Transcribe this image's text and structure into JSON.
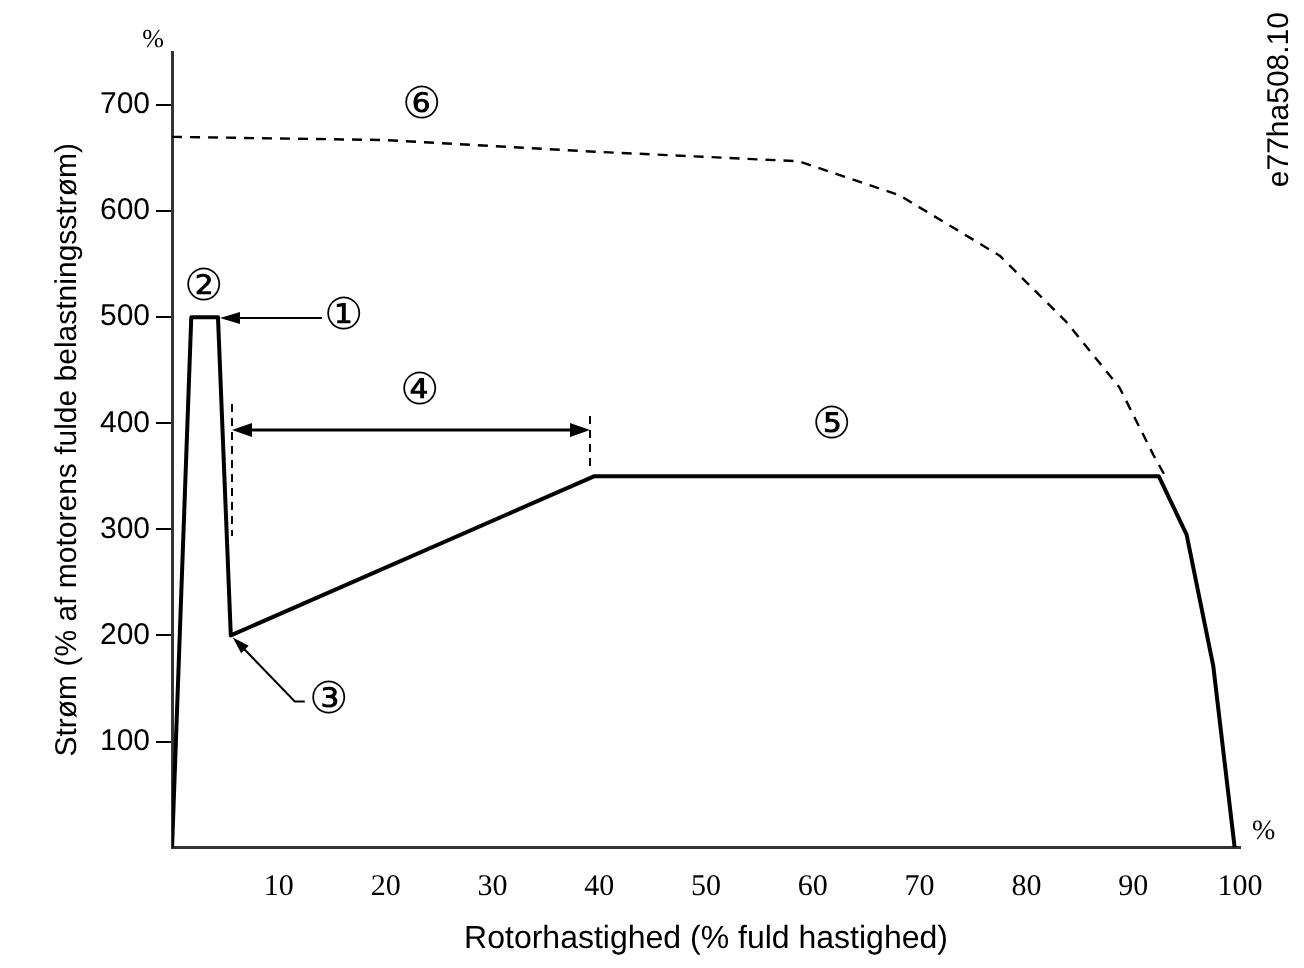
{
  "chart_data": {
    "type": "line",
    "xlabel": "Rotorhastighed (% fuld hastighed)",
    "ylabel": "Strøm (% af motorens fulde belastningsstrøm)",
    "xlim": [
      0,
      100
    ],
    "ylim": [
      0,
      750
    ],
    "xticks": [
      10,
      20,
      30,
      40,
      50,
      60,
      70,
      80,
      90,
      100
    ],
    "yticks": [
      100,
      200,
      300,
      400,
      500,
      600,
      700
    ],
    "series": [
      {
        "color": "#000000",
        "line_style": "solid",
        "x": [
          0,
          1.8,
          4.3,
          5.5,
          39.5,
          92.4,
          95,
          97.5,
          99.5
        ],
        "values": [
          0,
          500,
          500,
          200,
          350,
          350,
          295,
          171,
          0
        ]
      },
      {
        "color": "#000000",
        "line_style": "dashed",
        "x": [
          0,
          20,
          39.6,
          58.7,
          68.1,
          77.5,
          83.7,
          88.7,
          91.9,
          93
        ],
        "values": [
          670,
          667,
          656,
          647,
          615,
          558,
          496,
          434,
          370,
          350
        ]
      }
    ],
    "annotations": [
      {
        "text": "①",
        "x": 4.3,
        "y": 500
      },
      "②",
      {
        "text": "③",
        "x": 5.5,
        "y": 200
      },
      "④",
      "⑤",
      "⑥",
      "%",
      "%",
      "e77ha508.10"
    ],
    "legend": false,
    "grid": false,
    "marker": "none"
  }
}
